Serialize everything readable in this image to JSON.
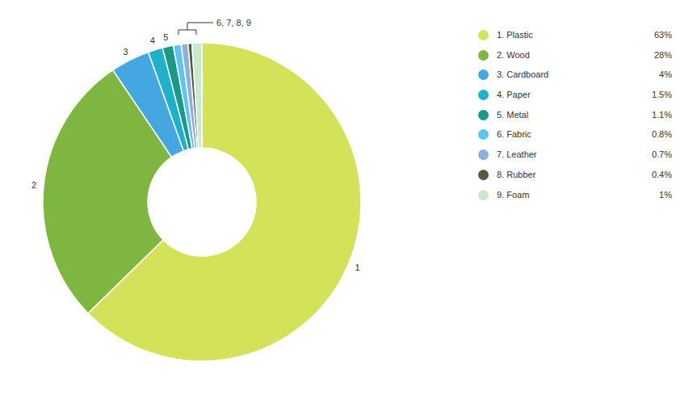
{
  "chart_data": {
    "type": "pie",
    "donut": true,
    "categories": [
      "1. Plastic",
      "2. Wood",
      "3. Cardboard",
      "4. Paper",
      "5. Metal",
      "6. Fabric",
      "7. Leather",
      "8. Rubber",
      "9. Foam"
    ],
    "values": [
      63,
      28,
      4,
      1.5,
      1.1,
      0.8,
      0.7,
      0.4,
      1
    ],
    "value_labels": [
      "63%",
      "28%",
      "4%",
      "1.5%",
      "1.1%",
      "0.8%",
      "0.7%",
      "0.4%",
      "1%"
    ],
    "labels": [
      "1",
      "2",
      "3",
      "4",
      "5",
      null,
      null,
      null,
      null
    ],
    "annotations": [
      {
        "text": "6, 7, 8, 9"
      }
    ],
    "colors": [
      "#d4e25a",
      "#7fb541",
      "#45a7df",
      "#1fb1c9",
      "#1b9a8b",
      "#5ec5f0",
      "#8fb0dc",
      "#55593f",
      "#c8e8d0"
    ],
    "legend": "right"
  }
}
